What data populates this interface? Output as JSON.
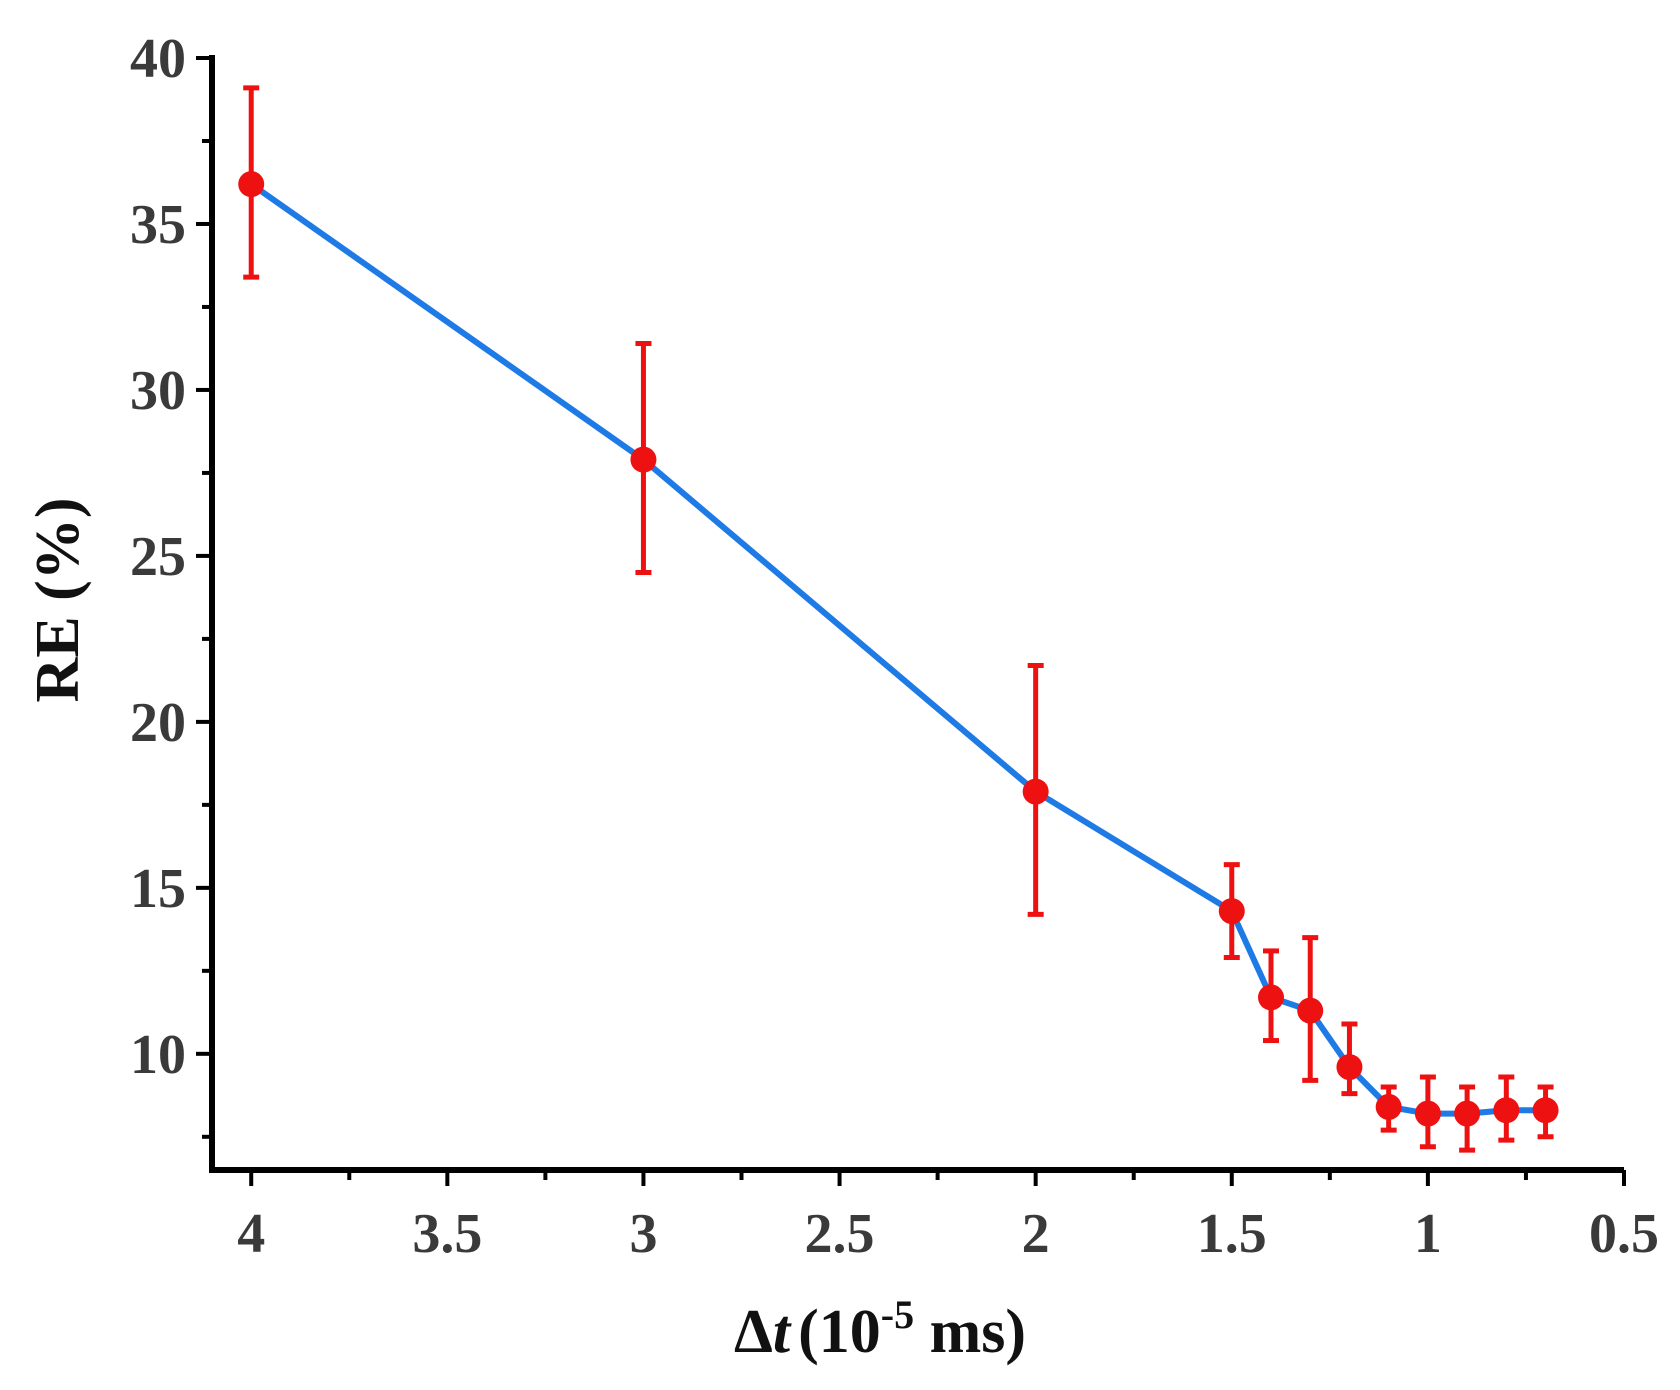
{
  "chart_data": {
    "type": "line",
    "title": "",
    "xlabel": {
      "symbol": "Δ",
      "italic": "t",
      "unit_pre": "(10",
      "unit_exp": "-5",
      "unit_post": " ms)"
    },
    "ylabel": "RE (%)",
    "xlim": [
      4.1,
      0.5
    ],
    "ylim": [
      6.5,
      40
    ],
    "x_reversed": true,
    "x_ticks": [
      4,
      3.5,
      3,
      2.5,
      2,
      1.5,
      1,
      0.5
    ],
    "x_tick_labels": [
      "4",
      "3.5",
      "3",
      "2.5",
      "2",
      "1.5",
      "1",
      "0.5"
    ],
    "x_minor_ticks": [
      3.75,
      3.25,
      2.75,
      2.25,
      1.75,
      1.25,
      0.75
    ],
    "y_ticks": [
      10,
      15,
      20,
      25,
      30,
      35,
      40
    ],
    "y_tick_labels": [
      "10",
      "15",
      "20",
      "25",
      "30",
      "35",
      "40"
    ],
    "y_minor_ticks": [
      7.5,
      12.5,
      17.5,
      22.5,
      27.5,
      32.5,
      37.5
    ],
    "series": [
      {
        "name": "RE",
        "x": [
          4.0,
          3.0,
          2.0,
          1.5,
          1.4,
          1.3,
          1.2,
          1.1,
          1.0,
          0.9,
          0.8,
          0.7
        ],
        "y": [
          36.2,
          27.9,
          17.9,
          14.3,
          11.7,
          11.3,
          9.6,
          8.4,
          8.2,
          8.2,
          8.3,
          8.3
        ],
        "err_low": [
          33.4,
          24.5,
          14.2,
          12.9,
          10.4,
          9.2,
          8.8,
          7.7,
          7.2,
          7.1,
          7.4,
          7.5
        ],
        "err_high": [
          39.1,
          31.4,
          21.7,
          15.7,
          13.1,
          13.5,
          10.9,
          9.0,
          9.3,
          9.0,
          9.3,
          9.0
        ],
        "line_color": "#1e7be6",
        "marker_color": "#ee1111"
      }
    ],
    "grid": false,
    "legend": "none"
  }
}
